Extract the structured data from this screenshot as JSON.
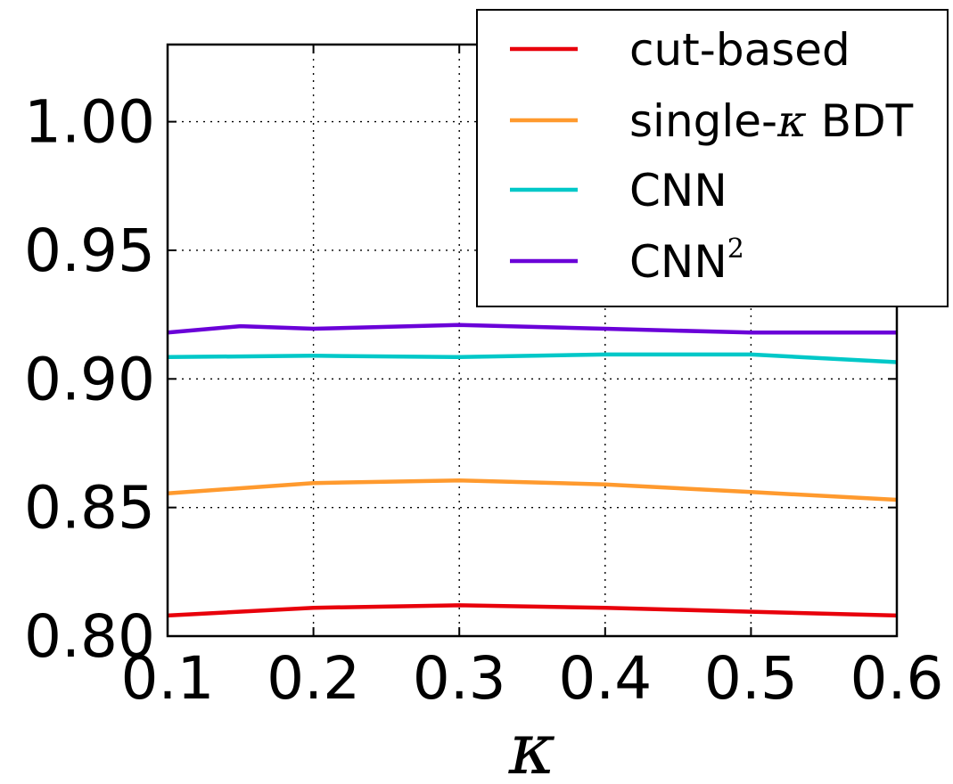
{
  "chart_data": {
    "type": "line",
    "title": "",
    "xlabel": "κ",
    "ylabel": "",
    "xlim": [
      0.1,
      0.6
    ],
    "ylim": [
      0.8,
      1.03
    ],
    "xticks": [
      0.1,
      0.2,
      0.3,
      0.4,
      0.5,
      0.6
    ],
    "xtick_labels": [
      "0.1",
      "0.2",
      "0.3",
      "0.4",
      "0.5",
      "0.6"
    ],
    "yticks": [
      0.8,
      0.85,
      0.9,
      0.95,
      1.0
    ],
    "ytick_labels": [
      "0.80",
      "0.85",
      "0.90",
      "0.95",
      "1.00"
    ],
    "grid": true,
    "legend_position": "top-right",
    "series": [
      {
        "name": "cut-based",
        "color": "#e8000b",
        "x": [
          0.1,
          0.2,
          0.3,
          0.4,
          0.5,
          0.6
        ],
        "values": [
          0.808,
          0.811,
          0.812,
          0.811,
          0.8095,
          0.808
        ]
      },
      {
        "name": "single-κ BDT",
        "name_prefix": "single-",
        "name_symbol": "κ",
        "name_suffix": " BDT",
        "color": "#ff9a2e",
        "x": [
          0.1,
          0.2,
          0.3,
          0.4,
          0.5,
          0.6
        ],
        "values": [
          0.8555,
          0.8595,
          0.8605,
          0.859,
          0.856,
          0.853
        ]
      },
      {
        "name": "CNN",
        "color": "#00c8c8",
        "x": [
          0.1,
          0.2,
          0.3,
          0.4,
          0.5,
          0.6
        ],
        "values": [
          0.9085,
          0.909,
          0.9085,
          0.9095,
          0.9095,
          0.9065
        ]
      },
      {
        "name": "CNN²",
        "name_base": "CNN",
        "name_sup": "2",
        "color": "#6a00d8",
        "x": [
          0.1,
          0.15,
          0.2,
          0.3,
          0.4,
          0.5,
          0.6
        ],
        "values": [
          0.918,
          0.9205,
          0.9195,
          0.921,
          0.9195,
          0.918,
          0.918
        ]
      }
    ]
  }
}
